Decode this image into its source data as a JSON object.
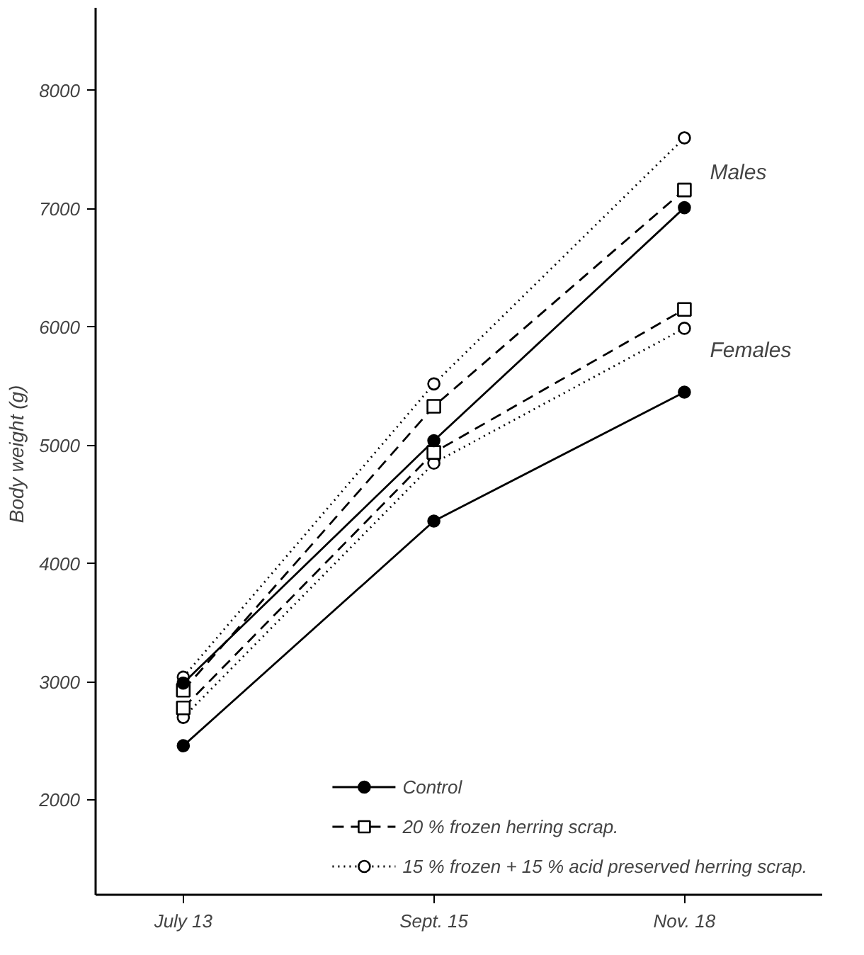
{
  "chart_data": {
    "type": "line",
    "ylabel": "Body weight  (g)",
    "categories": [
      "July 13",
      "Sept. 15",
      "Nov. 18"
    ],
    "series": [
      {
        "name": "Control",
        "color": "#000000",
        "marker": "circle",
        "line_style": "solid",
        "values": [
          2990,
          5040,
          7010
        ]
      },
      {
        "color": "#000000",
        "marker": "circle",
        "line_style": "solid",
        "values": [
          2460,
          4360,
          5450
        ]
      },
      {
        "name": "20 % frozen herring scrap.",
        "color": "#000000",
        "marker": "square",
        "line_style": "dashed",
        "values": [
          2930,
          5330,
          7160
        ]
      },
      {
        "color": "#000000",
        "marker": "square",
        "line_style": "dashed",
        "values": [
          2780,
          4940,
          6150
        ]
      },
      {
        "name": "15 % frozen + 15 % acid preserved herring scrap.",
        "color": "#000000",
        "marker": "circle",
        "line_style": "dotted",
        "values": [
          3040,
          5520,
          7600
        ]
      },
      {
        "color": "#000000",
        "marker": "circle",
        "line_style": "dotted",
        "values": [
          2700,
          4850,
          5990
        ]
      }
    ],
    "ylim": [
      1200,
      8700
    ],
    "yticks": [
      2000,
      3000,
      4000,
      5000,
      6000,
      7000,
      8000
    ],
    "annotations": [
      "Males",
      "Females"
    ],
    "grid": false,
    "legend": "bottom right"
  }
}
